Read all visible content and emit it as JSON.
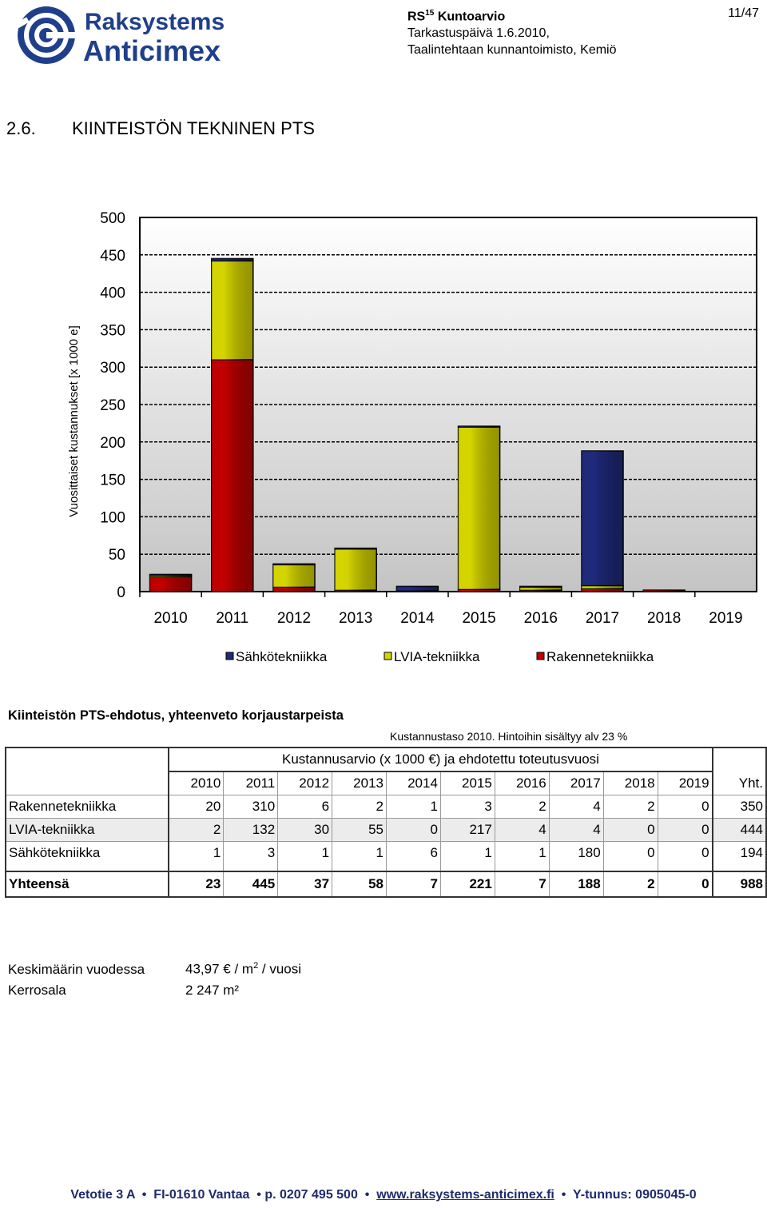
{
  "header": {
    "brand_line1": "Raksystems",
    "brand_line2": "Anticimex",
    "doc_name_prefix": "RS",
    "doc_name_sup": "15",
    "doc_name": "Kuntoarvio",
    "page": "11/47",
    "inspection": "Tarkastuspäivä 1.6.2010,",
    "location": "Taalintehtaan kunnantoimisto, Kemiö"
  },
  "section": {
    "number": "2.6.",
    "title": "KIINTEISTÖN TEKNINEN PTS"
  },
  "chart_data": {
    "type": "bar",
    "stacked": true,
    "categories": [
      "2010",
      "2011",
      "2012",
      "2013",
      "2014",
      "2015",
      "2016",
      "2017",
      "2018",
      "2019"
    ],
    "series": [
      {
        "name": "Rakennetekniikka",
        "color": "#c00000",
        "values": [
          20,
          310,
          6,
          2,
          1,
          3,
          2,
          4,
          2,
          0
        ]
      },
      {
        "name": "LVIA-tekniikka",
        "color": "#d4d400",
        "values": [
          2,
          132,
          30,
          55,
          0,
          217,
          4,
          4,
          0,
          0
        ]
      },
      {
        "name": "Sähkötekniikka",
        "color": "#1f2a7a",
        "values": [
          1,
          3,
          1,
          1,
          6,
          1,
          1,
          180,
          0,
          0
        ]
      }
    ],
    "legend_order": [
      "Sähkötekniikka",
      "LVIA-tekniikka",
      "Rakennetekniikka"
    ],
    "ylabel": "Vuosittaiset kustannukset [x 1000 e]",
    "ylim": [
      0,
      500
    ],
    "yticks": [
      "0",
      "50",
      "100",
      "150",
      "200",
      "250",
      "300",
      "350",
      "400",
      "450",
      "500"
    ],
    "grid": true,
    "legend_position": "bottom"
  },
  "table": {
    "title": "Kiinteistön PTS-ehdotus, yhteenveto korjaustarpeista",
    "note": "Kustannustaso 2010. Hintoihin sisältyy alv 23 %",
    "group_header": "Kustannusarvio (x 1000 €) ja ehdotettu toteutusvuosi",
    "years": [
      "2010",
      "2011",
      "2012",
      "2013",
      "2014",
      "2015",
      "2016",
      "2017",
      "2018",
      "2019"
    ],
    "total_header": "Yht.",
    "rows": [
      {
        "label": "Rakennetekniikka",
        "values": [
          "20",
          "310",
          "6",
          "2",
          "1",
          "3",
          "2",
          "4",
          "2",
          "0"
        ],
        "total": "350"
      },
      {
        "label": "LVIA-tekniikka",
        "values": [
          "2",
          "132",
          "30",
          "55",
          "0",
          "217",
          "4",
          "4",
          "0",
          "0"
        ],
        "total": "444"
      },
      {
        "label": "Sähkötekniikka",
        "values": [
          "1",
          "3",
          "1",
          "1",
          "6",
          "1",
          "1",
          "180",
          "0",
          "0"
        ],
        "total": "194"
      }
    ],
    "sum_row": {
      "label": "Yhteensä",
      "values": [
        "23",
        "445",
        "37",
        "58",
        "7",
        "221",
        "7",
        "188",
        "2",
        "0"
      ],
      "total": "988"
    }
  },
  "summary": {
    "avg_label": "Keskimäärin vuodessa",
    "avg_value": "43,97 € / m",
    "avg_sup": "2",
    "avg_suffix": " / vuosi",
    "area_label": "Kerrosala",
    "area_value": "2 247 m²"
  },
  "footer": {
    "address": "Vetotie 3 A",
    "postal": "FI-01610 Vantaa",
    "phone": "p. 0207 495 500",
    "website": "www.raksystems-anticimex.fi",
    "business_id": "Y-tunnus: 0905045-0"
  }
}
